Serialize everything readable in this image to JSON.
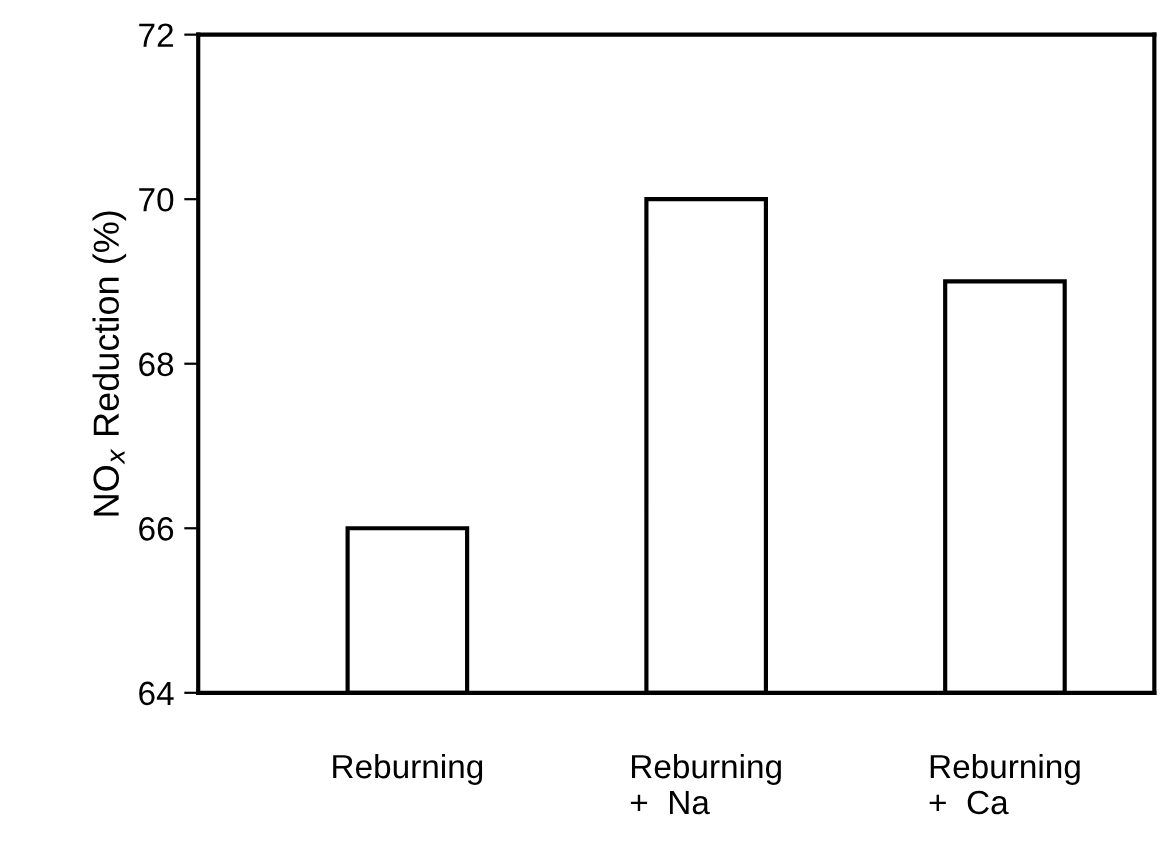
{
  "chart_data": {
    "type": "bar",
    "ylabel": "NO$_{x}$ Reduction (%)",
    "categories": [
      "Reburning",
      "Reburning\n+  Na",
      "Reburning\n+  Ca"
    ],
    "values": [
      66,
      70,
      69
    ],
    "color": "#ffffff",
    "ylim": [
      64,
      72
    ],
    "yticks": [
      64,
      66,
      68,
      70,
      72
    ],
    "grid": false
  }
}
